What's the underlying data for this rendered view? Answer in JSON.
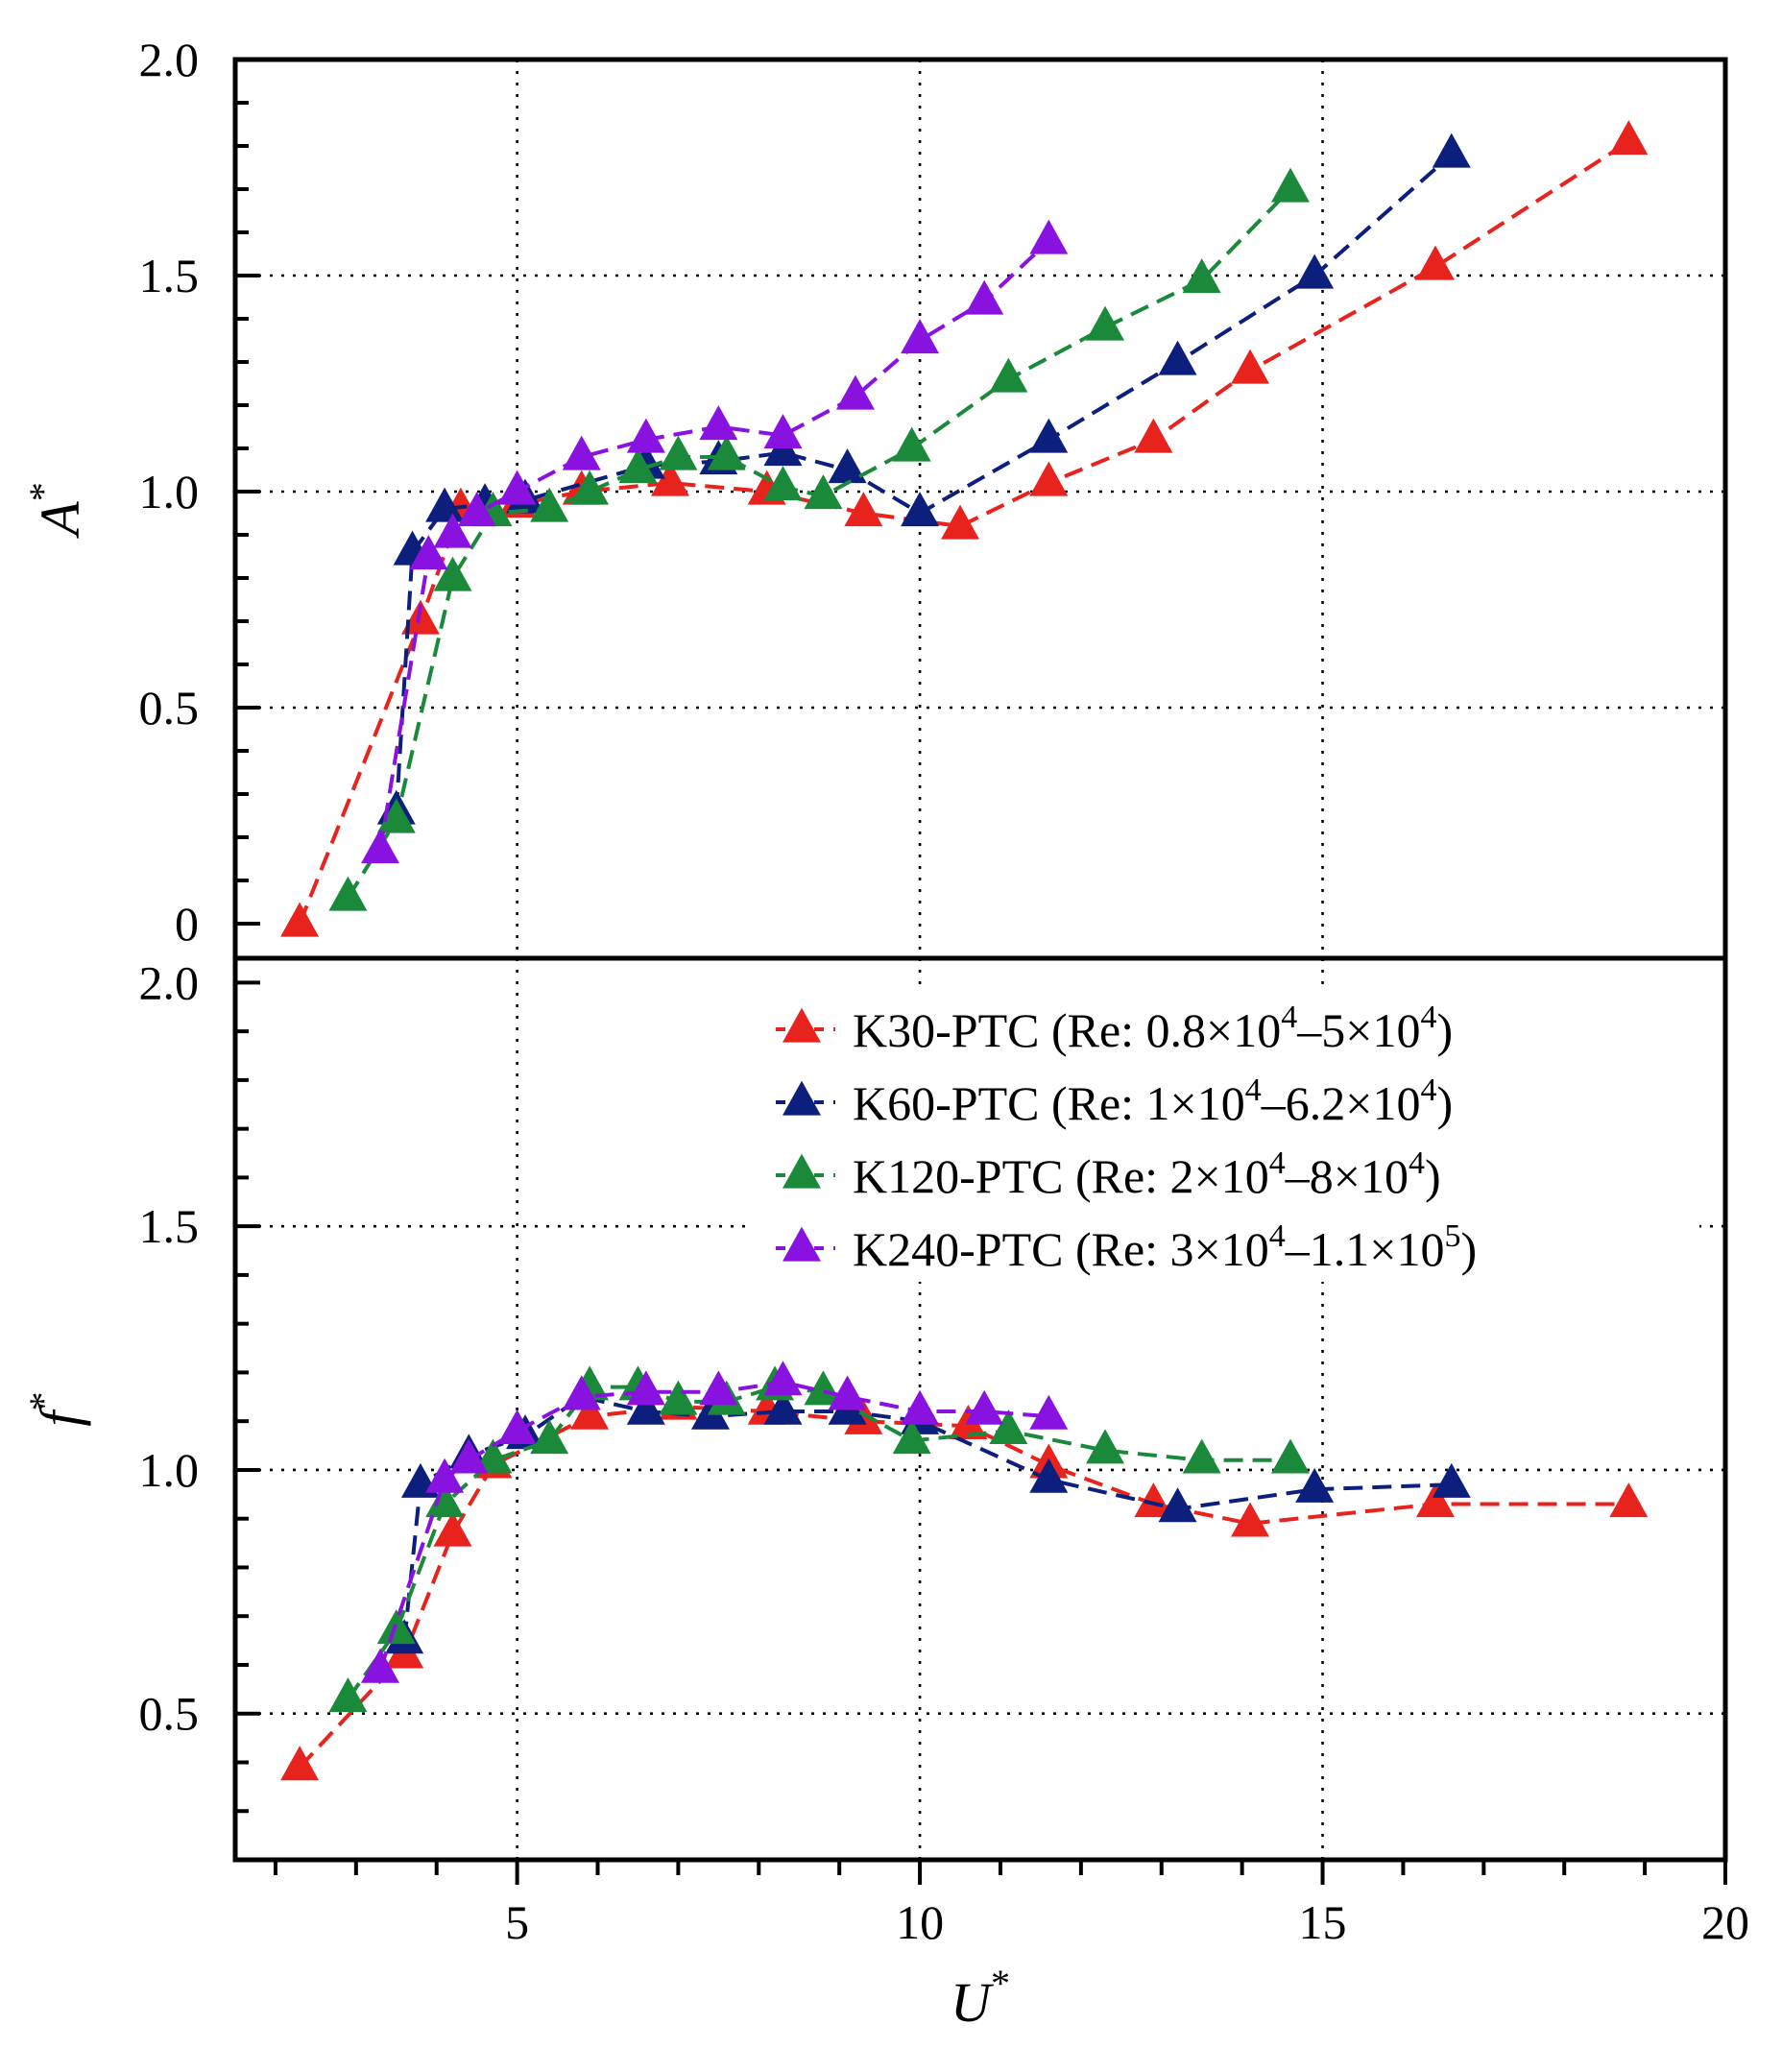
{
  "chart_data": {
    "type": "line",
    "shared_x": {
      "label": "U",
      "label_superscript": "*",
      "range": [
        1.5,
        20
      ],
      "tick_labels": [
        "5",
        "10",
        "15",
        "20"
      ],
      "major_ticks": [
        5,
        10,
        15,
        20
      ],
      "minor_step": 0.5
    },
    "panels": [
      {
        "name": "amplitude",
        "ylabel": "A",
        "ylabel_superscript": "*",
        "ylim": [
          -0.08,
          2.0
        ],
        "tick_labels": [
          "0",
          "0.5",
          "1.0",
          "1.5",
          "2.0"
        ],
        "major_ticks": [
          0,
          0.5,
          1.0,
          1.5,
          2.0
        ],
        "grid": [
          0.5,
          1.0,
          1.5
        ],
        "vgrid": [
          5,
          10,
          15
        ],
        "series": [
          {
            "name": "K30-PTC",
            "color": "#e8231e",
            "x": [
              2.3,
              3.8,
              4.3,
              5.0,
              5.8,
              6.9,
              8.1,
              9.3,
              10.5,
              11.6,
              12.9,
              14.1,
              16.4,
              18.8
            ],
            "y": [
              0.0,
              0.7,
              0.96,
              0.97,
              1.0,
              1.02,
              1.0,
              0.95,
              0.92,
              1.02,
              1.12,
              1.28,
              1.52,
              1.81
            ]
          },
          {
            "name": "K60-PTC",
            "color": "#0d1f7d",
            "x": [
              3.5,
              3.7,
              4.1,
              4.6,
              5.1,
              6.6,
              7.5,
              8.3,
              9.1,
              10.0,
              11.6,
              13.2,
              14.9,
              16.6
            ],
            "y": [
              0.26,
              0.86,
              0.96,
              0.97,
              0.98,
              1.06,
              1.07,
              1.09,
              1.05,
              0.95,
              1.12,
              1.3,
              1.5,
              1.78
            ]
          },
          {
            "name": "K120-PTC",
            "color": "#1a8a3a",
            "x": [
              2.9,
              3.5,
              4.2,
              4.7,
              5.4,
              5.9,
              6.5,
              7.0,
              7.6,
              8.3,
              8.8,
              9.9,
              11.1,
              12.3,
              13.5,
              14.6
            ],
            "y": [
              0.06,
              0.24,
              0.8,
              0.95,
              0.96,
              1.0,
              1.05,
              1.08,
              1.08,
              1.01,
              0.99,
              1.1,
              1.26,
              1.38,
              1.49,
              1.7
            ]
          },
          {
            "name": "K240-PTC",
            "color": "#8a12e0",
            "x": [
              3.3,
              3.9,
              4.2,
              4.5,
              5.0,
              5.8,
              6.6,
              7.5,
              8.3,
              9.2,
              10.0,
              10.8,
              11.6
            ],
            "y": [
              0.17,
              0.85,
              0.9,
              0.95,
              1.0,
              1.08,
              1.12,
              1.15,
              1.13,
              1.22,
              1.35,
              1.44,
              1.58
            ]
          }
        ]
      },
      {
        "name": "frequency",
        "ylabel": "f",
        "ylabel_superscript": "*",
        "ylim": [
          0.2,
          2.05
        ],
        "tick_labels": [
          "0.5",
          "1.0",
          "1.5",
          "2.0"
        ],
        "major_ticks": [
          0.5,
          1.0,
          1.5,
          2.0
        ],
        "grid": [
          0.5,
          1.0,
          1.5
        ],
        "vgrid": [
          5,
          10,
          15
        ],
        "series": [
          {
            "name": "K30-PTC",
            "color": "#e8231e",
            "x": [
              2.3,
              3.6,
              4.2,
              4.7,
              5.9,
              7.0,
              8.1,
              9.3,
              10.6,
              11.6,
              12.9,
              14.1,
              16.4,
              18.8
            ],
            "y": [
              0.39,
              0.62,
              0.87,
              1.01,
              1.11,
              1.13,
              1.12,
              1.1,
              1.09,
              1.01,
              0.93,
              0.89,
              0.93,
              0.93
            ]
          },
          {
            "name": "K60-PTC",
            "color": "#0d1f7d",
            "x": [
              3.6,
              3.8,
              4.4,
              5.1,
              5.8,
              6.6,
              7.4,
              8.3,
              9.1,
              10.0,
              11.6,
              13.2,
              14.9,
              16.6
            ],
            "y": [
              0.65,
              0.97,
              1.03,
              1.07,
              1.15,
              1.12,
              1.11,
              1.12,
              1.12,
              1.1,
              0.98,
              0.92,
              0.96,
              0.97
            ]
          },
          {
            "name": "K120-PTC",
            "color": "#1a8a3a",
            "x": [
              2.9,
              3.5,
              4.1,
              4.7,
              5.4,
              5.9,
              6.5,
              7.0,
              7.6,
              8.2,
              8.8,
              9.9,
              11.1,
              12.3,
              13.5,
              14.6
            ],
            "y": [
              0.53,
              0.67,
              0.93,
              1.02,
              1.06,
              1.17,
              1.17,
              1.14,
              1.14,
              1.17,
              1.16,
              1.06,
              1.08,
              1.04,
              1.02,
              1.02
            ]
          },
          {
            "name": "K240-PTC",
            "color": "#8a12e0",
            "x": [
              3.3,
              4.1,
              4.4,
              5.0,
              5.8,
              6.6,
              7.5,
              8.3,
              9.1,
              10.0,
              10.8,
              11.6
            ],
            "y": [
              0.59,
              0.98,
              1.02,
              1.08,
              1.15,
              1.16,
              1.16,
              1.18,
              1.15,
              1.12,
              1.12,
              1.11
            ]
          }
        ]
      }
    ],
    "legend": {
      "placement": "top-right of lower panel",
      "entries": [
        {
          "series": "K30-PTC",
          "color": "#e8231e",
          "label": "K30-PTC (Re: 0.8×10",
          "sup1": "4",
          "mid": "–5×10",
          "sup2": "4",
          "tail": ")"
        },
        {
          "series": "K60-PTC",
          "color": "#0d1f7d",
          "label": "K60-PTC (Re: 1×10",
          "sup1": "4",
          "mid": "–6.2×10",
          "sup2": "4",
          "tail": ")"
        },
        {
          "series": "K120-PTC",
          "color": "#1a8a3a",
          "label": "K120-PTC (Re: 2×10",
          "sup1": "4",
          "mid": "–8×10",
          "sup2": "4",
          "tail": ")"
        },
        {
          "series": "K240-PTC",
          "color": "#8a12e0",
          "label": "K240-PTC (Re: 3×10",
          "sup1": "4",
          "mid": "–1.1×10",
          "sup2": "5",
          "tail": ")"
        }
      ]
    }
  }
}
